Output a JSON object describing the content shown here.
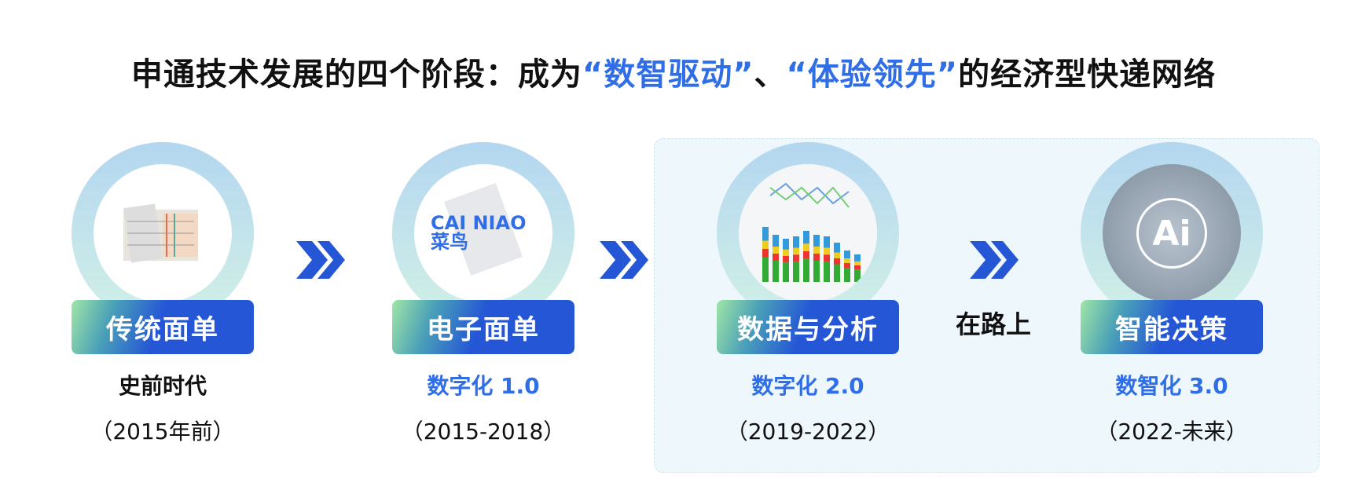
{
  "title": {
    "part1": "申通技术发展的四个阶段：成为",
    "hl1": "“数智驱动”",
    "sep": "、",
    "hl2": "“体验领先”",
    "part2": "的经济型快递网络"
  },
  "accent_color": "#2f6ee6",
  "stages": [
    {
      "label": "传统面单",
      "subtitle": "史前时代",
      "subtitle_color": "#111111",
      "period": "（2015年前）",
      "image": "paper-waybills"
    },
    {
      "label": "电子面单",
      "subtitle": "数字化 1.0",
      "subtitle_color": "#2f6ee6",
      "period": "（2015-2018）",
      "image": "cainiao-e-waybill",
      "logo_text": "CAI NIAO 菜鸟"
    },
    {
      "label": "数据与分析",
      "subtitle": "数字化 2.0",
      "subtitle_color": "#2f6ee6",
      "period": "（2019-2022）",
      "image": "sales-analysis-chart"
    },
    {
      "label": "智能决策",
      "subtitle": "数智化 3.0",
      "subtitle_color": "#2f6ee6",
      "period": "（2022-未来）",
      "image": "ai-doctor"
    }
  ],
  "on_the_way": "在路上",
  "ai_text": "Ai"
}
